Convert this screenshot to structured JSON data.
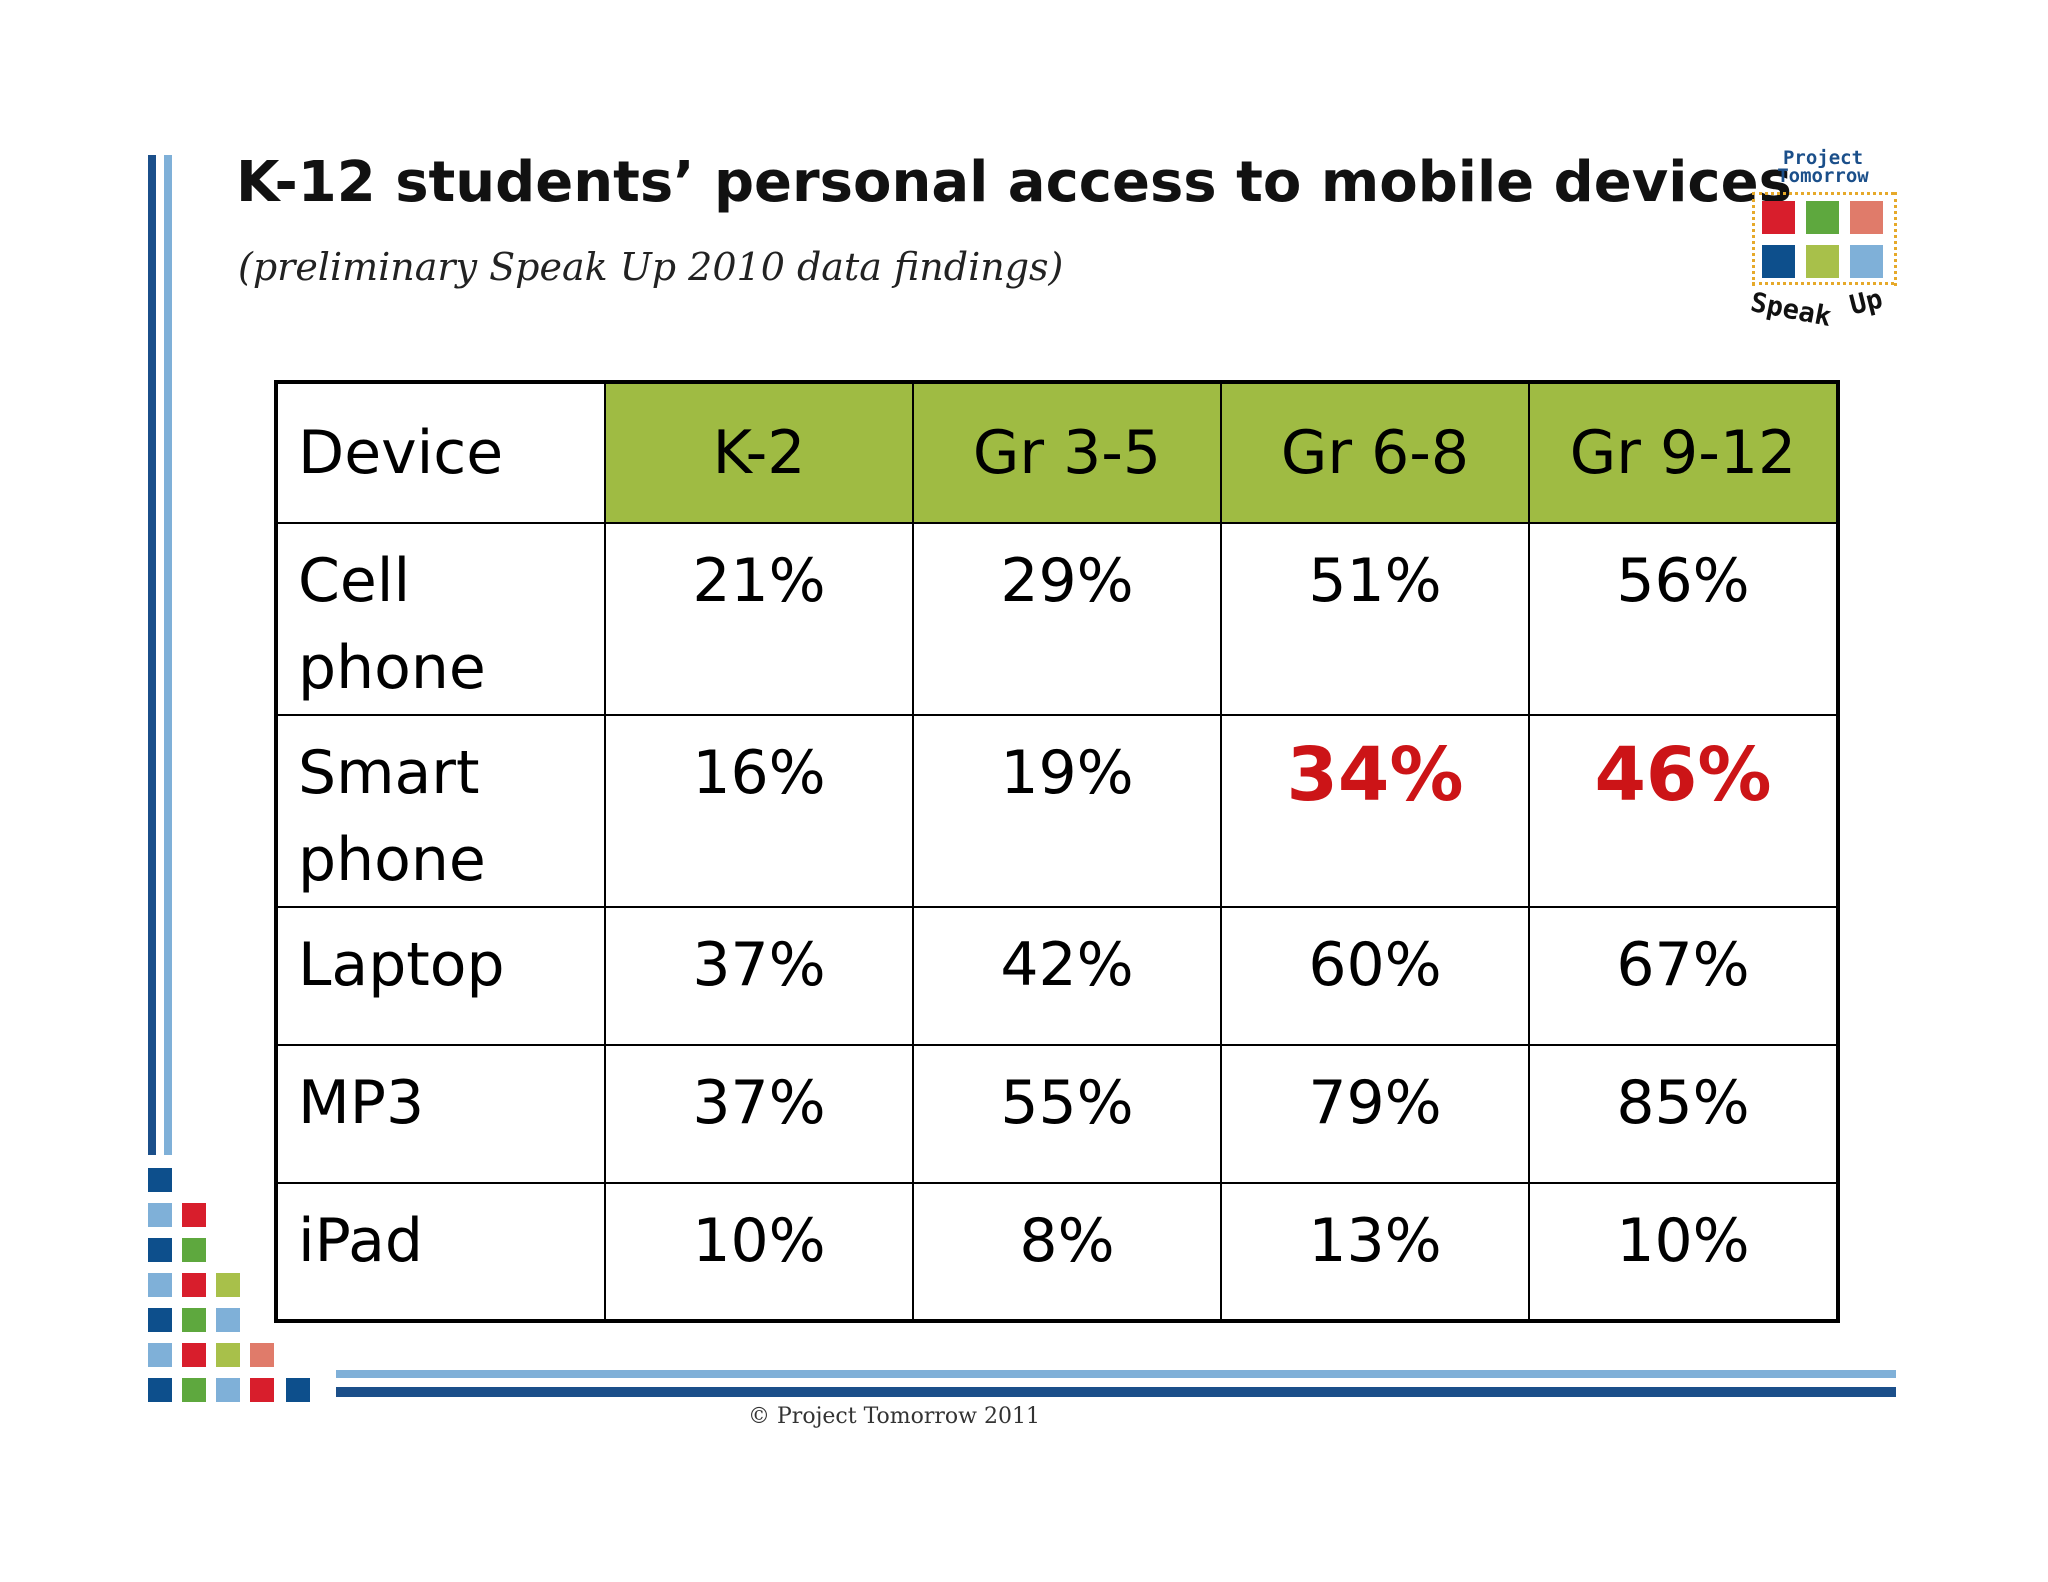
{
  "title": "K-12 students’ personal access to mobile devices",
  "subtitle": "(preliminary Speak Up 2010 data findings)",
  "logo": {
    "line1": "Project",
    "line2": "Tomorrow",
    "word1": "Speak",
    "word2": "Up"
  },
  "table": {
    "headers": [
      "Device",
      "K-2",
      "Gr 3-5",
      "Gr 6-8",
      "Gr 9-12"
    ],
    "rows": [
      {
        "device": "Cell phone",
        "values": [
          "21%",
          "29%",
          "51%",
          "56%"
        ]
      },
      {
        "device": "Smart phone",
        "values": [
          "16%",
          "19%",
          "34%",
          "46%"
        ]
      },
      {
        "device": "Laptop",
        "values": [
          "37%",
          "42%",
          "60%",
          "67%"
        ]
      },
      {
        "device": "MP3",
        "values": [
          "37%",
          "55%",
          "79%",
          "85%"
        ]
      },
      {
        "device": "iPad",
        "values": [
          "10%",
          "8%",
          "13%",
          "10%"
        ]
      }
    ]
  },
  "footer": "© Project Tomorrow 2011",
  "colors": {
    "header_fill": "#9fbb43",
    "highlight": "#cc1417",
    "dark_blue": "#0d4f8c",
    "light_blue": "#7fb0d8",
    "red": "#d81e2c",
    "green": "#5ea83e",
    "olive": "#a8c04a",
    "salmon": "#e07b6a"
  }
}
